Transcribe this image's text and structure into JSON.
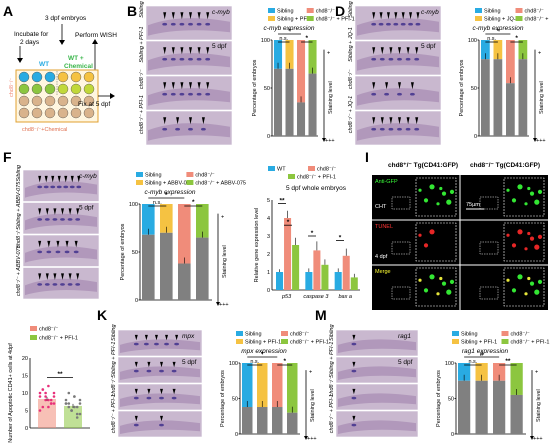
{
  "panels": {
    "A": {
      "letter": "A",
      "top_text": "3 dpf embryos",
      "incubate": "Incubate for\n2 days",
      "wt": "WT",
      "chem": "WT + Chemical",
      "mut": "chd8⁻/⁻",
      "mutchem": "chd8⁻/⁻+Chemical",
      "wish": "Perform WISH",
      "fix": "Fix at 5 dpf"
    },
    "B": {
      "letter": "B",
      "gene": "c-myb",
      "stage": "5 dpf",
      "rows": [
        "Sibling",
        "Sibling + PFI-1",
        "chd8⁻/⁻",
        "chd8⁻/⁻ + PFI-1"
      ]
    },
    "D": {
      "letter": "D",
      "gene": "c-myb",
      "stage": "5 dpf",
      "rows": [
        "Sibling",
        "Sibling + JQ-1",
        "chd8⁻/⁻",
        "chd8⁻/⁻ + JQ-1"
      ]
    },
    "F": {
      "letter": "F",
      "gene": "c-myb",
      "stage": "5 dpf",
      "rows": [
        "Sibling",
        "Sibling + ABBV-075",
        "chd8⁻/⁻",
        "chd8⁻/⁻ + ABBV-075"
      ]
    },
    "K": {
      "letter": "K",
      "gene": "mpx",
      "stage": "5 dpf",
      "rows": [
        "Sibling",
        "Sibling + PFI-1",
        "chd8⁻/⁻",
        "chd8⁻/⁻ + PFI-1"
      ]
    },
    "M": {
      "letter": "M",
      "gene": "rag1",
      "stage": "5 dpf",
      "rows": [
        "Sibling",
        "Sibling + PFI-1",
        "chd8⁻/⁻",
        "chd8⁻/⁻ + PFI-1"
      ]
    },
    "I": {
      "letter": "I",
      "col1": "chd8⁺/⁻ Tg(CD41:GFP)",
      "col2": "chd8⁻/⁻ Tg(CD41:GFP)",
      "rows": [
        "Anti-GFP",
        "TUNEL",
        "Merge"
      ],
      "cht": "CHT",
      "stage": "4 dpf",
      "scale": "75µm"
    }
  },
  "colors": {
    "sibling": "#29abe2",
    "mutant": "#f08c7a",
    "sib_drug": "#f5c242",
    "mut_drug": "#8cc63f",
    "low": "#808080",
    "wt": "#29abe2",
    "green_label": "#39b54a",
    "tunel": "#ff3333"
  },
  "chart_data": [
    {
      "id": "C",
      "type": "bar",
      "title": "c-myb expression",
      "ylabel": "Percentage of embryos",
      "legend": [
        "Sibling",
        "chd8⁻/⁻",
        "Sibling + PFI-1",
        "chd8⁻/⁻ + PFI-1"
      ],
      "categories": [
        "Sibling",
        "Sibling + PFI-1",
        "chd8⁻/⁻",
        "chd8⁻/⁻ + PFI-1"
      ],
      "low": [
        70,
        70,
        35,
        65
      ],
      "total": 100,
      "ylim": [
        0,
        100
      ],
      "yticks": [
        "0",
        "50",
        "100"
      ],
      "sig": [
        "n.s.",
        "*",
        "*"
      ],
      "level_label": "Staining level",
      "plus": "+",
      "plus3": "+++"
    },
    {
      "id": "E",
      "type": "bar",
      "title": "c-myb expression",
      "ylabel": "Percentage of embryos",
      "legend": [
        "Sibling",
        "chd8⁻/⁻",
        "Sibling + JQ-1",
        "chd8⁻/⁻ + JQ-1"
      ],
      "categories": [
        "Sibling",
        "Sibling + JQ-1",
        "chd8⁻/⁻",
        "chd8⁻/⁻ + JQ-1"
      ],
      "low": [
        80,
        80,
        55,
        80
      ],
      "total": 100,
      "ylim": [
        0,
        100
      ],
      "yticks": [
        "0",
        "50",
        "100"
      ],
      "sig": [
        "n.s.",
        "*",
        "*"
      ],
      "level_label": "Staining level",
      "plus": "+",
      "plus3": "+++"
    },
    {
      "id": "G",
      "type": "bar",
      "title": "c-myb expression",
      "ylabel": "Percentage of embryos",
      "legend": [
        "Sibling",
        "chd8⁻/⁻",
        "Sibling + ABBV-075",
        "chd8⁻/⁻ + ABBV-075"
      ],
      "categories": [
        "Sibling",
        "Sibling + ABBV-075",
        "chd8⁻/⁻",
        "chd8⁻/⁻ + ABBV-075"
      ],
      "low": [
        68,
        70,
        38,
        65
      ],
      "total": 100,
      "ylim": [
        0,
        100
      ],
      "yticks": [
        "0",
        "50",
        "100"
      ],
      "sig": [
        "n.s.",
        "*",
        "*"
      ],
      "level_label": "Staining level",
      "plus": "+",
      "plus3": "+++"
    },
    {
      "id": "L",
      "type": "bar",
      "title": "mpx expression",
      "ylabel": "Percentage of embryos",
      "legend": [
        "Sibling",
        "chd8⁻/⁻",
        "Sibling + PFI-1",
        "chd8⁻/⁻ + PFI-1"
      ],
      "categories": [
        "Sibling",
        "Sibling + PFI-1",
        "chd8⁻/⁻",
        "chd8⁻/⁻ + PFI-1"
      ],
      "low": [
        38,
        38,
        38,
        30
      ],
      "total": 100,
      "ylim": [
        0,
        100
      ],
      "yticks": [
        "0",
        "50",
        "100"
      ],
      "sig": [
        "n.s.",
        "*",
        "*"
      ],
      "level_label": "Staining level",
      "plus": "+",
      "plus3": "+++"
    },
    {
      "id": "N",
      "type": "bar",
      "title": "rag1 expression",
      "ylabel": "Percentage of embryos",
      "legend": [
        "Sibling",
        "chd8⁻/⁻",
        "Sibling + PFI-1",
        "chd8⁻/⁻ + PFI-1"
      ],
      "categories": [
        "Sibling",
        "Sibling + PFI-1",
        "chd8⁻/⁻",
        "chd8⁻/⁻ + PFI-1"
      ],
      "low": [
        75,
        75,
        75,
        55
      ],
      "total": 100,
      "ylim": [
        0,
        100
      ],
      "yticks": [
        "0",
        "50",
        "100"
      ],
      "sig": [
        "n.s.",
        "#",
        "**"
      ],
      "level_label": "Staining level",
      "plus": "+",
      "plus3": "+++"
    },
    {
      "id": "H",
      "type": "bar",
      "title": "5 dpf whole embryos",
      "ylabel": "Relative gene expression level",
      "legend": [
        "WT",
        "chd8⁻/⁻",
        "chd8⁻/⁻ + PFI-1"
      ],
      "categories": [
        "p53",
        "caspase 3",
        "bax a"
      ],
      "series": [
        {
          "name": "WT",
          "values": [
            1.0,
            1.0,
            1.0
          ]
        },
        {
          "name": "chd8⁻/⁻",
          "values": [
            4.0,
            2.2,
            1.9
          ]
        },
        {
          "name": "chd8⁻/⁻ + PFI-1",
          "values": [
            2.5,
            1.4,
            0.7
          ]
        }
      ],
      "errors": [
        [
          0.15,
          0.2,
          0.2
        ],
        [
          0.4,
          0.5,
          0.4
        ],
        [
          0.4,
          0.3,
          0.2
        ]
      ],
      "ylim": [
        0,
        5
      ],
      "yticks": [
        "0",
        "1",
        "2",
        "3",
        "4",
        "5"
      ],
      "sig": [
        "**",
        "*",
        "*",
        "*"
      ]
    },
    {
      "id": "J",
      "type": "bar",
      "ylabel": "Number of Apoptotic CD41+ cells at 4dpf",
      "legend": [
        "chd8⁻/⁻",
        "chd8⁻/⁻ + PFI-1"
      ],
      "categories": [
        "chd8⁻/⁻",
        "chd8⁻/⁻ + PFI-1"
      ],
      "values": [
        8.3,
        6.3
      ],
      "errors": [
        0.6,
        0.6
      ],
      "ylim": [
        0,
        20
      ],
      "yticks": [
        "0",
        "5",
        "10",
        "15",
        "20"
      ],
      "sig": "**",
      "points": [
        [
          10,
          11,
          9,
          12,
          8,
          7,
          9,
          6,
          10,
          8,
          7,
          9,
          5,
          11,
          8,
          6,
          7,
          10
        ],
        [
          8,
          7,
          5,
          9,
          6,
          4,
          7,
          10,
          5,
          6,
          3,
          8,
          7,
          6,
          5,
          9,
          4,
          7
        ]
      ]
    }
  ]
}
